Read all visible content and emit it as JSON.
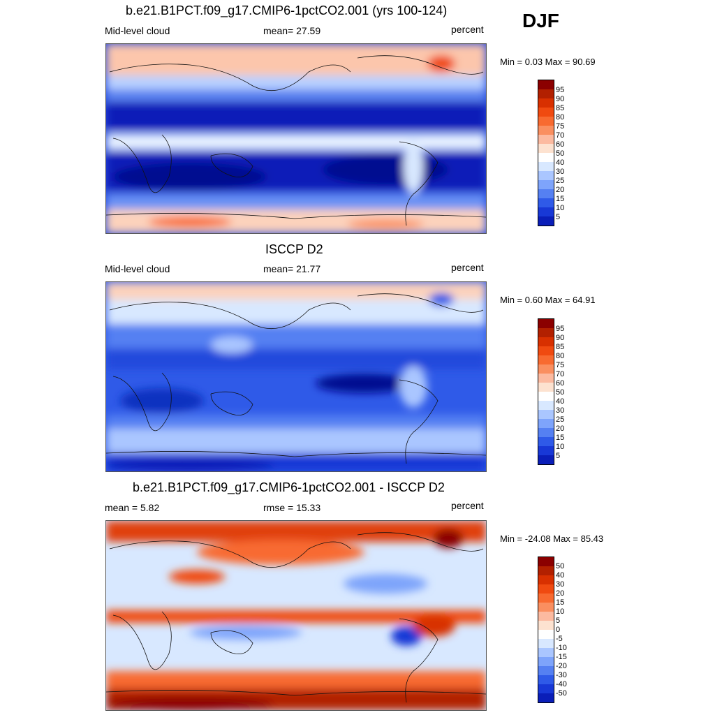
{
  "season": "DJF",
  "panels": [
    {
      "title": "b.e21.B1PCT.f09_g17.CMIP6-1pctCO2.001 (yrs 100-124)",
      "left_label": "Mid-level cloud",
      "mid_label": "mean=  27.59",
      "right_label": "percent",
      "minmax": "Min =   0.03 Max =  90.69",
      "colorbar": {
        "labels": [
          "95",
          "90",
          "85",
          "80",
          "75",
          "70",
          "60",
          "50",
          "40",
          "30",
          "25",
          "20",
          "15",
          "10",
          "5"
        ],
        "colors": [
          "#8b0000",
          "#b22000",
          "#d83000",
          "#f04a10",
          "#f86a30",
          "#fa8f60",
          "#fcbaa0",
          "#fde2d0",
          "#ffffff",
          "#d8e8ff",
          "#aac6ff",
          "#7ea4fb",
          "#5580f2",
          "#2f5ae8",
          "#1838d6",
          "#0a1eb8",
          "#000a90"
        ]
      }
    },
    {
      "title": "ISCCP D2",
      "left_label": "Mid-level cloud",
      "mid_label": "mean=  21.77",
      "right_label": "percent",
      "minmax": "Min =   0.60 Max =  64.91",
      "colorbar": {
        "labels": [
          "95",
          "90",
          "85",
          "80",
          "75",
          "70",
          "60",
          "50",
          "40",
          "30",
          "25",
          "20",
          "15",
          "10",
          "5"
        ],
        "colors": [
          "#8b0000",
          "#b22000",
          "#d83000",
          "#f04a10",
          "#f86a30",
          "#fa8f60",
          "#fcbaa0",
          "#fde2d0",
          "#ffffff",
          "#d8e8ff",
          "#aac6ff",
          "#7ea4fb",
          "#5580f2",
          "#2f5ae8",
          "#1838d6",
          "#0a1eb8",
          "#000a90"
        ]
      }
    },
    {
      "title": "b.e21.B1PCT.f09_g17.CMIP6-1pctCO2.001 - ISCCP D2",
      "left_label": "mean =   5.82",
      "mid_label": "rmse =  15.33",
      "right_label": "percent",
      "minmax": "Min = -24.08 Max =  85.43",
      "colorbar": {
        "labels": [
          "50",
          "40",
          "30",
          "20",
          "15",
          "10",
          "5",
          "0",
          "-5",
          "-10",
          "-15",
          "-20",
          "-30",
          "-40",
          "-50"
        ],
        "colors": [
          "#8b0000",
          "#b22000",
          "#d83000",
          "#f04a10",
          "#f86a30",
          "#fa8f60",
          "#fcbaa0",
          "#fde2d0",
          "#ffffff",
          "#d8e8ff",
          "#aac6ff",
          "#7ea4fb",
          "#5580f2",
          "#2f5ae8",
          "#1838d6",
          "#0a1eb8",
          "#000a90"
        ]
      }
    }
  ]
}
